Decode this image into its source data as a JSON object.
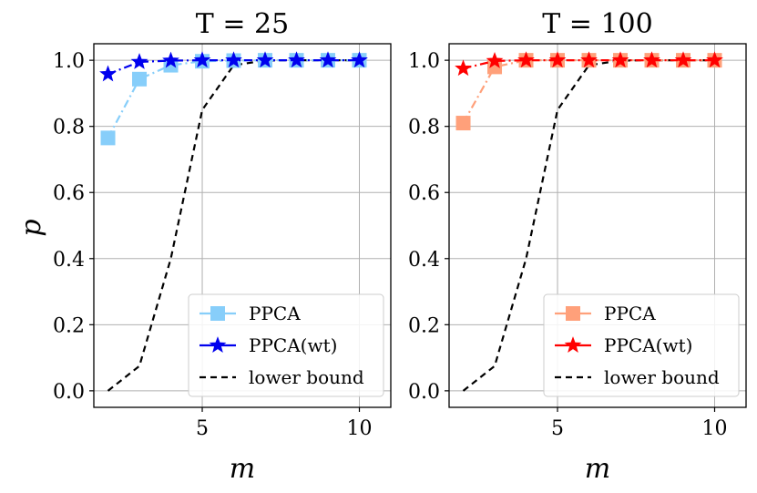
{
  "chart_data": [
    {
      "type": "line",
      "title": "T = 25",
      "xlabel": "m",
      "ylabel": "p",
      "xlim": [
        1.55,
        11.0
      ],
      "ylim": [
        -0.05,
        1.05
      ],
      "xticks": [
        5,
        10
      ],
      "yticks": [
        0.0,
        0.2,
        0.4,
        0.6,
        0.8,
        1.0
      ],
      "grid": true,
      "legend_position": "lower-right",
      "series": [
        {
          "name": "PPCA",
          "color": "#87cefa",
          "marker": "square",
          "linestyle": "dashdot",
          "x": [
            2,
            3,
            4,
            5,
            6,
            7,
            8,
            9,
            10
          ],
          "y": [
            0.765,
            0.943,
            0.985,
            0.997,
            0.999,
            1.0,
            1.0,
            1.0,
            1.0
          ]
        },
        {
          "name": "PPCA(wt)",
          "color": "#0000ee",
          "marker": "star",
          "linestyle": "dashdot",
          "x": [
            2,
            3,
            4,
            5,
            6,
            7,
            8,
            9,
            10
          ],
          "y": [
            0.958,
            0.995,
            0.999,
            1.0,
            1.0,
            1.0,
            1.0,
            1.0,
            1.0
          ]
        },
        {
          "name": "lower bound",
          "color": "#000000",
          "marker": "none",
          "linestyle": "dashed",
          "x": [
            2,
            3,
            4,
            5,
            6,
            7,
            8,
            9,
            10
          ],
          "y": [
            0.0,
            0.075,
            0.4,
            0.85,
            0.985,
            0.999,
            1.0,
            1.0,
            1.0
          ]
        }
      ]
    },
    {
      "type": "line",
      "title": "T = 100",
      "xlabel": "m",
      "ylabel": "",
      "xlim": [
        1.55,
        11.0
      ],
      "ylim": [
        -0.05,
        1.05
      ],
      "xticks": [
        5,
        10
      ],
      "yticks": [
        0.0,
        0.2,
        0.4,
        0.6,
        0.8,
        1.0
      ],
      "grid": true,
      "legend_position": "lower-right",
      "series": [
        {
          "name": "PPCA",
          "color": "#ffa07a",
          "marker": "square",
          "linestyle": "dashdot",
          "x": [
            2,
            3,
            4,
            5,
            6,
            7,
            8,
            9,
            10
          ],
          "y": [
            0.81,
            0.98,
            1.0,
            1.0,
            1.0,
            1.0,
            1.0,
            1.0,
            1.0
          ]
        },
        {
          "name": "PPCA(wt)",
          "color": "#ff0000",
          "marker": "star",
          "linestyle": "dashdot",
          "x": [
            2,
            3,
            4,
            5,
            6,
            7,
            8,
            9,
            10
          ],
          "y": [
            0.975,
            0.998,
            1.0,
            1.0,
            1.0,
            1.0,
            1.0,
            1.0,
            1.0
          ]
        },
        {
          "name": "lower bound",
          "color": "#000000",
          "marker": "none",
          "linestyle": "dashed",
          "x": [
            2,
            3,
            4,
            5,
            6,
            7,
            8,
            9,
            10
          ],
          "y": [
            0.0,
            0.075,
            0.4,
            0.85,
            0.985,
            0.999,
            1.0,
            1.0,
            1.0
          ]
        }
      ]
    }
  ]
}
